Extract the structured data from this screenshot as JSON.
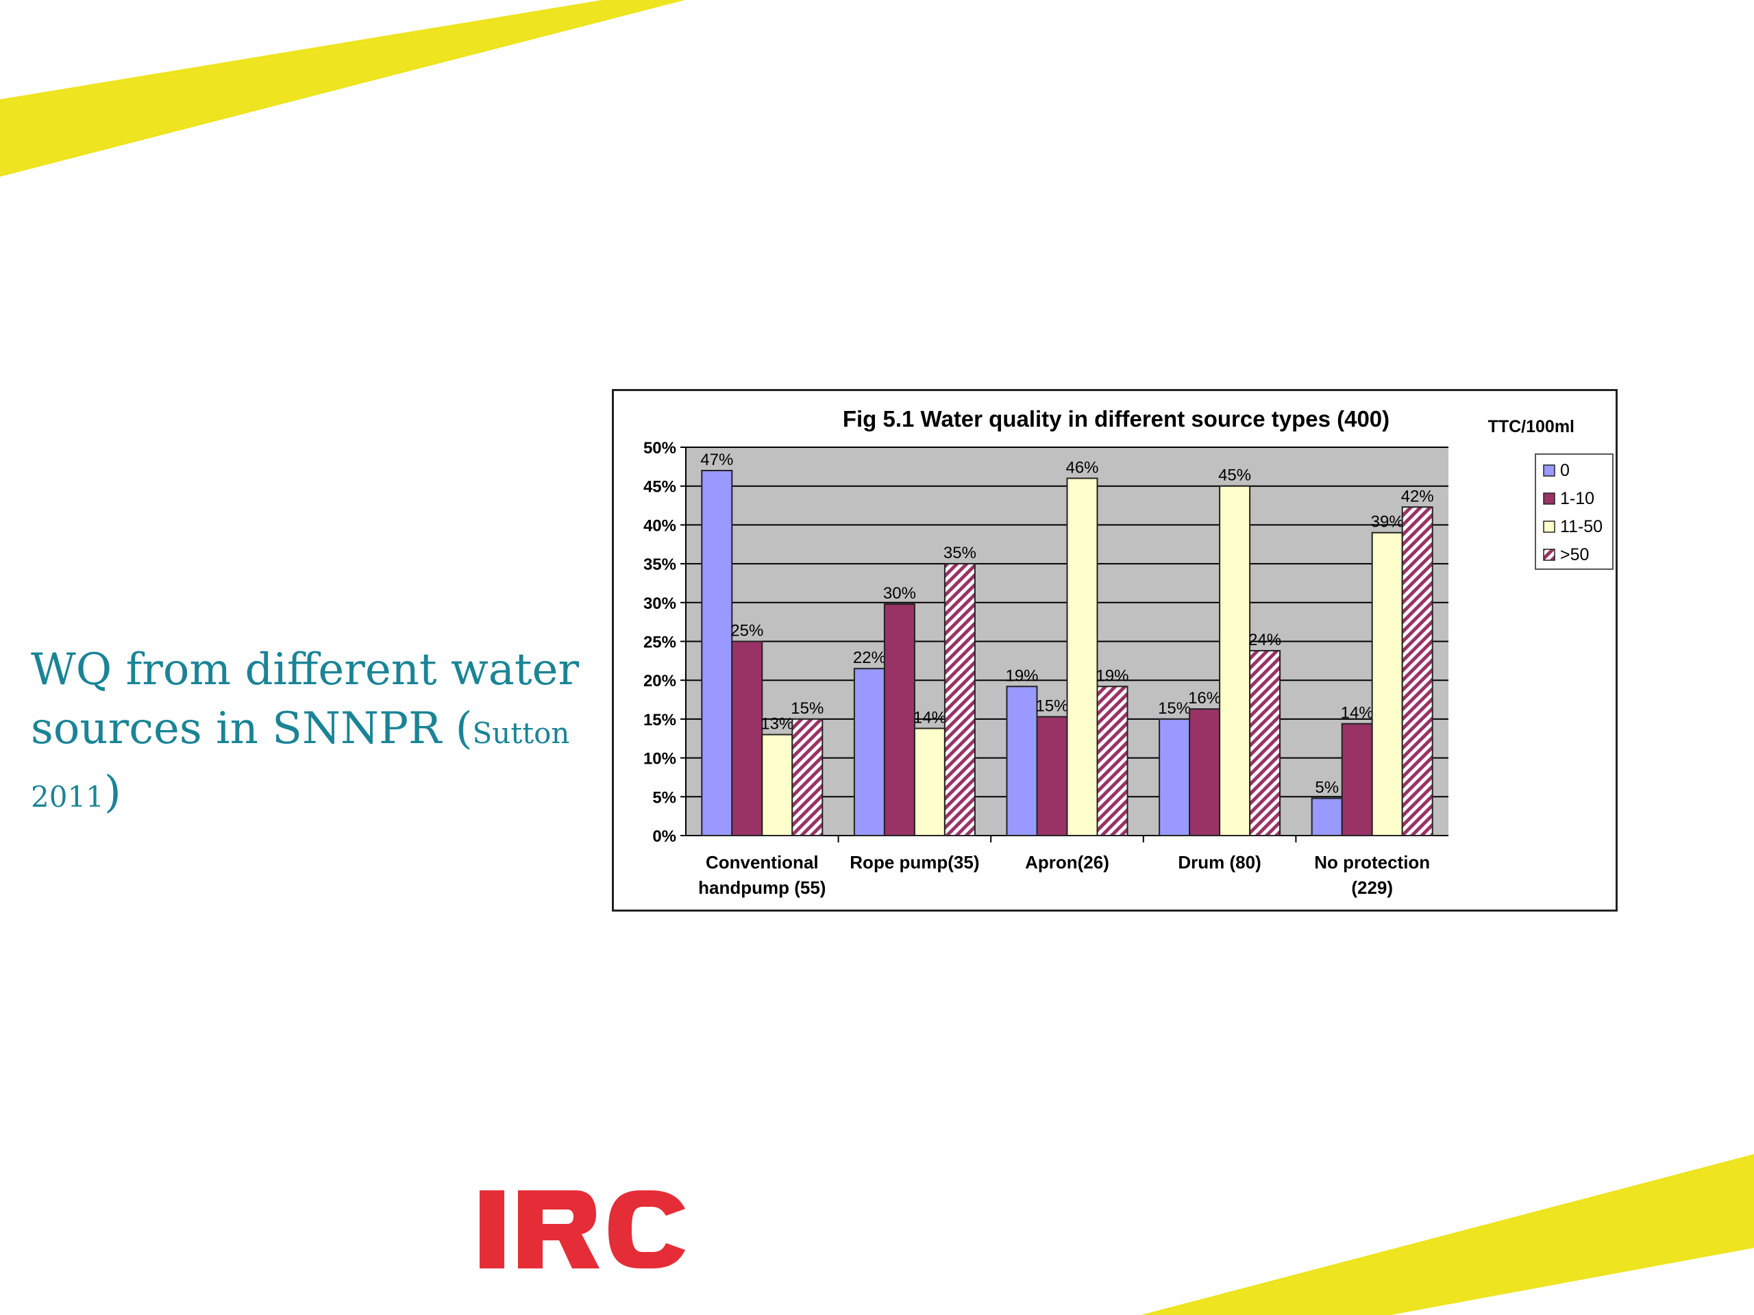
{
  "slide": {
    "title_main": "WQ from different water sources in SNNPR (",
    "title_ref": "Sutton 2011",
    "title_close": ")",
    "logo_text": "IRC",
    "colors": {
      "stripe": "#eee41f",
      "title": "#1a8496",
      "logo": "#e52d38"
    }
  },
  "chart_data": {
    "type": "bar",
    "title": "Fig 5.1  Water quality in different source types (400)",
    "legend_title": "TTC/100ml",
    "legend_position": "right",
    "grid": true,
    "plot_background": "#c0c0c0",
    "ylim": [
      0,
      50
    ],
    "y_ticks": [
      "0%",
      "5%",
      "10%",
      "15%",
      "20%",
      "25%",
      "30%",
      "35%",
      "40%",
      "45%",
      "50%"
    ],
    "categories": [
      [
        "Conventional",
        "handpump (55)"
      ],
      [
        "Rope pump(35)"
      ],
      [
        "Apron(26)"
      ],
      [
        "Drum (80)"
      ],
      [
        "No protection",
        "(229)"
      ]
    ],
    "series": [
      {
        "name": "0",
        "color": "#9999ff",
        "values": [
          47,
          21.5,
          19.2,
          15,
          4.8
        ],
        "labels": [
          "47%",
          "22%",
          "19%",
          "15%",
          "5%"
        ]
      },
      {
        "name": "1-10",
        "color": "#993366",
        "values": [
          25,
          29.8,
          15.3,
          16.3,
          14.4
        ],
        "labels": [
          "25%",
          "30%",
          "15%",
          "16%",
          "14%"
        ]
      },
      {
        "name": "11-50",
        "color": "#ffffcc",
        "values": [
          13,
          13.8,
          46,
          45,
          39
        ],
        "labels": [
          "13%",
          "14%",
          "46%",
          "45%",
          "39%"
        ]
      },
      {
        "name": ">50",
        "color": "#993366",
        "pattern": "diagonal-hatch",
        "values": [
          15,
          35,
          19.2,
          23.8,
          42.3
        ],
        "labels": [
          "15%",
          "35%",
          "19%",
          "24%",
          "42%"
        ]
      }
    ]
  }
}
